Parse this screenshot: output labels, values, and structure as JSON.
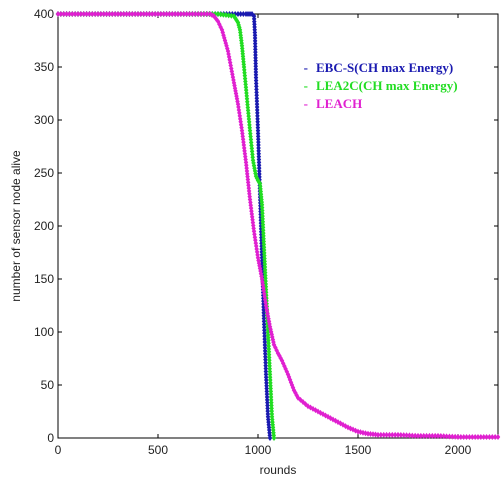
{
  "chart_data": {
    "type": "scatter",
    "title": "",
    "xlabel": "rounds",
    "ylabel": "number of sensor node alive",
    "xlim": [
      0,
      2200
    ],
    "ylim": [
      0,
      400
    ],
    "xticks": [
      0,
      500,
      1000,
      1500,
      2000
    ],
    "yticks": [
      0,
      50,
      100,
      150,
      200,
      250,
      300,
      350,
      400
    ],
    "grid": false,
    "legend_position": "top-right",
    "series": [
      {
        "name": "EBC-S(CH max Energy)",
        "color": "#1a1ab0",
        "marker": "diamond",
        "x": [
          0,
          200,
          400,
          600,
          800,
          900,
          940,
          960,
          970,
          980,
          985,
          990,
          1000,
          1010,
          1020,
          1030,
          1040,
          1050,
          1060
        ],
        "y": [
          400,
          400,
          400,
          400,
          400,
          400,
          400,
          400,
          400,
          398,
          380,
          340,
          290,
          230,
          170,
          110,
          60,
          20,
          0
        ]
      },
      {
        "name": "LEA2C(CH max Energy)",
        "color": "#22dd22",
        "marker": "diamond",
        "x": [
          0,
          200,
          400,
          600,
          800,
          880,
          900,
          910,
          920,
          930,
          945,
          960,
          975,
          990,
          1000,
          1010,
          1020,
          1030,
          1040,
          1050,
          1060,
          1070,
          1080
        ],
        "y": [
          400,
          400,
          400,
          400,
          400,
          398,
          392,
          385,
          370,
          350,
          320,
          290,
          262,
          247,
          243,
          240,
          220,
          180,
          140,
          100,
          60,
          20,
          0
        ]
      },
      {
        "name": "LEACH",
        "color": "#e020d0",
        "marker": "diamond",
        "x": [
          0,
          200,
          400,
          600,
          760,
          780,
          800,
          820,
          850,
          880,
          900,
          920,
          940,
          960,
          980,
          1000,
          1020,
          1040,
          1060,
          1080,
          1100,
          1120,
          1150,
          1180,
          1200,
          1250,
          1300,
          1350,
          1400,
          1450,
          1500,
          1550,
          1600,
          1700,
          1800,
          1900,
          2000,
          2100,
          2200
        ],
        "y": [
          400,
          400,
          400,
          400,
          400,
          398,
          393,
          385,
          365,
          335,
          315,
          290,
          260,
          225,
          195,
          170,
          150,
          125,
          105,
          88,
          80,
          73,
          60,
          45,
          38,
          30,
          25,
          20,
          15,
          10,
          6,
          4,
          3,
          3,
          2,
          2,
          1,
          1,
          1
        ]
      }
    ]
  }
}
